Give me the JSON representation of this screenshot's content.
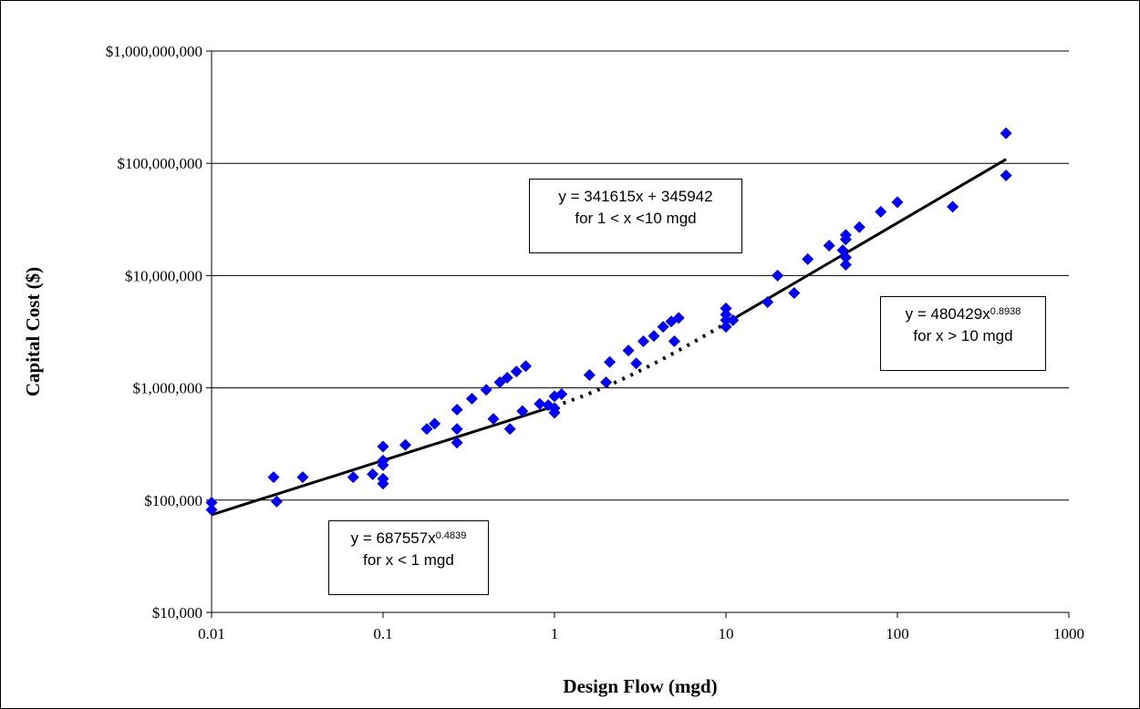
{
  "chart_data": {
    "type": "scatter",
    "xlabel": "Design Flow (mgd)",
    "ylabel": "Capital Cost ($)",
    "x_scale": "log",
    "y_scale": "log",
    "xlim": [
      0.01,
      1000
    ],
    "ylim": [
      10000,
      1000000000
    ],
    "x_tick_labels": [
      "0.01",
      "0.1",
      "1",
      "10",
      "100",
      "1000"
    ],
    "x_tick_values": [
      0.01,
      0.1,
      1,
      10,
      100,
      1000
    ],
    "y_tick_labels": [
      "$10,000",
      "$100,000",
      "$1,000,000",
      "$10,000,000",
      "$100,000,000",
      "$1,000,000,000"
    ],
    "y_tick_values": [
      10000,
      100000,
      1000000,
      10000000,
      100000000,
      1000000000
    ],
    "grid": "horizontal major gridlines",
    "marker_color": "#0000FF",
    "trend_color": "#000000",
    "points": [
      [
        0.01,
        95000
      ],
      [
        0.01,
        82000
      ],
      [
        0.023,
        160000
      ],
      [
        0.024,
        97000
      ],
      [
        0.034,
        160000
      ],
      [
        0.067,
        160000
      ],
      [
        0.087,
        170000
      ],
      [
        0.1,
        300000
      ],
      [
        0.1,
        225000
      ],
      [
        0.1,
        205000
      ],
      [
        0.1,
        155000
      ],
      [
        0.1,
        140000
      ],
      [
        0.135,
        310000
      ],
      [
        0.18,
        430000
      ],
      [
        0.2,
        480000
      ],
      [
        0.27,
        640000
      ],
      [
        0.27,
        430000
      ],
      [
        0.27,
        325000
      ],
      [
        0.33,
        800000
      ],
      [
        0.4,
        960000
      ],
      [
        0.44,
        530000
      ],
      [
        0.48,
        1120000
      ],
      [
        0.53,
        1230000
      ],
      [
        0.55,
        430000
      ],
      [
        0.6,
        1400000
      ],
      [
        0.65,
        620000
      ],
      [
        0.68,
        1560000
      ],
      [
        0.82,
        720000
      ],
      [
        0.92,
        700000
      ],
      [
        1.0,
        840000
      ],
      [
        1.0,
        660000
      ],
      [
        1.0,
        600000
      ],
      [
        1.1,
        880000
      ],
      [
        1.6,
        1300000
      ],
      [
        2.0,
        1120000
      ],
      [
        2.1,
        1700000
      ],
      [
        2.7,
        2150000
      ],
      [
        3.0,
        1650000
      ],
      [
        3.3,
        2600000
      ],
      [
        3.8,
        2900000
      ],
      [
        4.3,
        3500000
      ],
      [
        4.8,
        3900000
      ],
      [
        5.0,
        2600000
      ],
      [
        5.3,
        4200000
      ],
      [
        10.0,
        5100000
      ],
      [
        10.0,
        4500000
      ],
      [
        10.0,
        4000000
      ],
      [
        10.0,
        3500000
      ],
      [
        11.0,
        4000000
      ],
      [
        17.5,
        5800000
      ],
      [
        20.0,
        10000000
      ],
      [
        25.0,
        7000000
      ],
      [
        30.0,
        14000000
      ],
      [
        40.0,
        18500000
      ],
      [
        48.0,
        16800000
      ],
      [
        50.0,
        23000000
      ],
      [
        50.0,
        21000000
      ],
      [
        50.0,
        14500000
      ],
      [
        50.0,
        12500000
      ],
      [
        60.0,
        27000000
      ],
      [
        80.0,
        37000000
      ],
      [
        100.0,
        45000000
      ],
      [
        210.0,
        41000000
      ],
      [
        430.0,
        185000000
      ],
      [
        430.0,
        78000000
      ]
    ],
    "trend_segments": [
      {
        "equation": "y = 687557x^0.4839",
        "range": "for x < 1 mgd",
        "form": "power",
        "a": 687557,
        "b": 0.4839,
        "x_start": 0.01,
        "x_end": 1,
        "style": "solid"
      },
      {
        "equation": "y = 341615x + 345942",
        "range": "for 1 < x <10 mgd",
        "form": "linear",
        "a": 341615,
        "c": 345942,
        "x_start": 1,
        "x_end": 10,
        "style": "dotted"
      },
      {
        "equation": "y = 480429x^0.8938",
        "range": "for x > 10 mgd",
        "form": "power",
        "a": 480429,
        "b": 0.8938,
        "x_start": 10,
        "x_end": 430,
        "style": "solid"
      }
    ]
  },
  "annotations": {
    "low": {
      "eq_prefix": "y = 687557x",
      "eq_exp": "0.4839",
      "range": "for x < 1 mgd"
    },
    "mid": {
      "eq_full": "y = 341615x + 345942",
      "range": "for 1 < x <10 mgd"
    },
    "high": {
      "eq_prefix": "y = 480429x",
      "eq_exp": "0.8938",
      "range": "for x > 10 mgd"
    }
  }
}
